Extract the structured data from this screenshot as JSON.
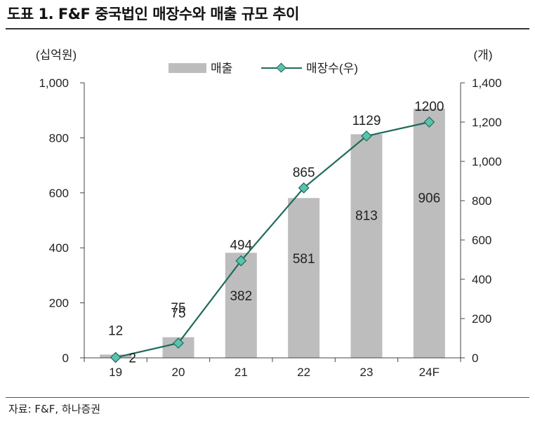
{
  "header": {
    "title": "도표 1. F&F 중국법인 매장수와 매출 규모 추이"
  },
  "footer": {
    "source": "자료: F&F, 하나증권"
  },
  "chart_data": {
    "type": "bar+line",
    "categories": [
      "19",
      "20",
      "21",
      "22",
      "23",
      "24F"
    ],
    "left_axis": {
      "label": "(십억원)",
      "ylim": [
        0,
        1000
      ],
      "ticks": [
        0,
        200,
        400,
        600,
        800,
        1000
      ],
      "tick_labels": [
        "0",
        "200",
        "400",
        "600",
        "800",
        "1,000"
      ]
    },
    "right_axis": {
      "label": "(개)",
      "ylim": [
        0,
        1400
      ],
      "ticks": [
        0,
        200,
        400,
        600,
        800,
        1000,
        1200,
        1400
      ],
      "tick_labels": [
        "0",
        "200",
        "400",
        "600",
        "800",
        "1,000",
        "1,200",
        "1,400"
      ]
    },
    "series": [
      {
        "name": "매출",
        "type": "bar",
        "axis": "left",
        "values": [
          12,
          75,
          382,
          581,
          813,
          906
        ],
        "labels": [
          "12",
          "75",
          "382",
          "581",
          "813",
          "906"
        ],
        "color": "#bdbdbd"
      },
      {
        "name": "매장수(우)",
        "type": "line",
        "axis": "right",
        "values": [
          2,
          75,
          494,
          865,
          1129,
          1200
        ],
        "labels": [
          "2",
          "75",
          "494",
          "865",
          "1129",
          "1200"
        ],
        "color": "#1f6b5c",
        "marker_color": "#5cc2ae"
      }
    ],
    "legend": "top-center",
    "grid": false
  }
}
